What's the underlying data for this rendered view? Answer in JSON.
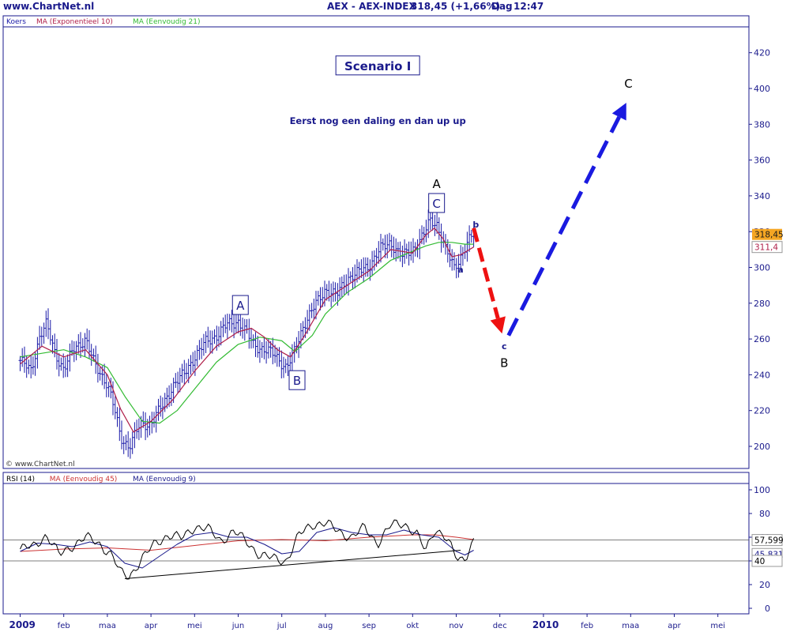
{
  "header": {
    "site": "www.ChartNet.nl",
    "symbol": "AEX - AEX-INDEX",
    "quote": "318,45 (+1,66%)",
    "period": "Dag",
    "time": "12:47"
  },
  "colors": {
    "price_bars": "#1a1aa8",
    "ma_exp10": "#b0204a",
    "ma_simple21": "#33bb33",
    "rsi_line": "#000000",
    "rsi_ma45": "#cc3333",
    "rsi_ma9": "#1a1a8c",
    "arrow_red": "#ee1111",
    "arrow_blue": "#1a1ae0",
    "axis_text": "#1a1a8c"
  },
  "chart_data": [
    {
      "type": "line",
      "subtype": "ohlc-bars",
      "legend": [
        "Koers",
        "MA (Exponentieel 10)",
        "MA (Eenvoudig 21)"
      ],
      "x_ticks": [
        "2009",
        "feb",
        "maa",
        "apr",
        "mei",
        "jun",
        "jul",
        "aug",
        "sep",
        "okt",
        "nov",
        "dec",
        "2010",
        "feb",
        "maa",
        "apr",
        "mei"
      ],
      "y_ticks": [
        200,
        220,
        240,
        260,
        280,
        300,
        320,
        340,
        360,
        380,
        400,
        420
      ],
      "ylim": [
        190,
        432
      ],
      "last_price_label": "318,45",
      "ma_label": "311,4",
      "series": [
        {
          "name": "Koers",
          "x": [
            0,
            0.25,
            0.45,
            0.6,
            0.8,
            1.0,
            1.25,
            1.5,
            1.7,
            2.0,
            2.15,
            2.3,
            2.5,
            2.75,
            3.0,
            3.25,
            3.5,
            3.75,
            4.0,
            4.25,
            4.5,
            4.75,
            5.0,
            5.2,
            5.35,
            5.6,
            5.85,
            6.1,
            6.25,
            6.5,
            6.75,
            7.0,
            7.25,
            7.5,
            7.75,
            8.0,
            8.25,
            8.5,
            8.75,
            9.0,
            9.25,
            9.4,
            9.55,
            9.75,
            9.95,
            10.1,
            10.25,
            10.4
          ],
          "y": [
            248,
            242,
            262,
            268,
            252,
            243,
            255,
            260,
            246,
            235,
            222,
            205,
            200,
            212,
            213,
            222,
            234,
            240,
            250,
            258,
            262,
            268,
            270,
            263,
            257,
            254,
            251,
            244,
            250,
            268,
            278,
            288,
            284,
            294,
            297,
            301,
            310,
            314,
            306,
            310,
            318,
            326,
            325,
            310,
            300,
            306,
            313,
            318.45
          ]
        },
        {
          "name": "MA (Exponentieel 10)",
          "x": [
            0,
            0.5,
            1.0,
            1.5,
            2.0,
            2.3,
            2.6,
            3.0,
            3.5,
            4.0,
            4.5,
            5.0,
            5.3,
            5.6,
            5.9,
            6.2,
            6.5,
            7.0,
            7.5,
            8.0,
            8.5,
            9.0,
            9.3,
            9.5,
            9.7,
            9.9,
            10.1,
            10.4
          ],
          "y": [
            246,
            256,
            250,
            254,
            240,
            221,
            208,
            214,
            226,
            242,
            256,
            264,
            266,
            261,
            254,
            250,
            261,
            282,
            290,
            298,
            310,
            308,
            318,
            322,
            316,
            306,
            307,
            311.4
          ]
        },
        {
          "name": "MA (Eenvoudig 21)",
          "x": [
            0,
            0.5,
            1.0,
            1.5,
            2.0,
            2.4,
            2.8,
            3.2,
            3.6,
            4.0,
            4.5,
            5.0,
            5.5,
            6.0,
            6.3,
            6.7,
            7.0,
            7.5,
            8.0,
            8.5,
            9.0,
            9.3,
            9.6,
            9.9,
            10.2,
            10.4
          ],
          "y": [
            250,
            252,
            254,
            250,
            244,
            228,
            214,
            213,
            220,
            232,
            247,
            257,
            261,
            259,
            253,
            262,
            274,
            286,
            294,
            304,
            309,
            312,
            314,
            314,
            313,
            313
          ]
        }
      ],
      "annotations": [
        {
          "text": "Scenario I",
          "x": 8.2,
          "y": 412,
          "boxed": true,
          "style": "title"
        },
        {
          "text": "Eerst nog een daling en dan up up",
          "x": 8.2,
          "y": 382,
          "style": "note"
        },
        {
          "text": "A",
          "x": 5.05,
          "y": 279,
          "boxed": true,
          "style": "wave-boxed"
        },
        {
          "text": "B",
          "x": 6.35,
          "y": 237,
          "boxed": true,
          "style": "wave-boxed"
        },
        {
          "text": "C",
          "x": 9.55,
          "y": 336,
          "boxed": true,
          "style": "wave-boxed"
        },
        {
          "text": "A",
          "x": 9.55,
          "y": 347,
          "style": "wave-big"
        },
        {
          "text": "b",
          "x": 10.45,
          "y": 324,
          "style": "wave-small"
        },
        {
          "text": "a",
          "x": 10.1,
          "y": 299,
          "style": "wave-small"
        },
        {
          "text": "c",
          "x": 11.1,
          "y": 256,
          "style": "wave-small"
        },
        {
          "text": "B",
          "x": 11.1,
          "y": 247,
          "style": "wave-big"
        },
        {
          "text": "C",
          "x": 13.95,
          "y": 403,
          "style": "wave-big"
        }
      ],
      "arrows": [
        {
          "color": "red",
          "from": [
            10.4,
            322
          ],
          "to": [
            11.05,
            263
          ]
        },
        {
          "color": "blue",
          "from": [
            11.2,
            262
          ],
          "to": [
            13.9,
            392
          ]
        }
      ],
      "watermark": "© www.ChartNet.nl"
    },
    {
      "type": "line",
      "legend": [
        "RSI (14)",
        "MA (Eenvoudig 45)",
        "MA (Eenvoudig 9)"
      ],
      "y_ticks": [
        0,
        20,
        40,
        60,
        80,
        100
      ],
      "ylim": [
        -5,
        104
      ],
      "reference_lines": [
        40,
        57.599
      ],
      "rsi_label": "57,599",
      "ma_label": "45,831",
      "level_label": "40",
      "series": [
        {
          "name": "RSI (14)",
          "x": [
            0,
            0.3,
            0.6,
            0.9,
            1.2,
            1.5,
            1.8,
            2.1,
            2.3,
            2.5,
            2.8,
            3.1,
            3.4,
            3.7,
            4.0,
            4.3,
            4.6,
            4.9,
            5.2,
            5.5,
            5.8,
            6.1,
            6.4,
            6.7,
            7.0,
            7.3,
            7.6,
            7.9,
            8.2,
            8.5,
            8.8,
            9.1,
            9.3,
            9.5,
            9.7,
            9.9,
            10.05,
            10.2,
            10.4
          ],
          "y": [
            50,
            52,
            62,
            45,
            53,
            60,
            55,
            45,
            30,
            27,
            42,
            55,
            62,
            59,
            69,
            67,
            57,
            65,
            56,
            45,
            42,
            40,
            62,
            71,
            72,
            65,
            60,
            68,
            55,
            70,
            72,
            62,
            48,
            67,
            63,
            50,
            40,
            43,
            57.599
          ]
        },
        {
          "name": "MA (Eenvoudig 9)",
          "x": [
            0,
            0.4,
            0.8,
            1.2,
            1.6,
            2.0,
            2.4,
            2.8,
            3.2,
            3.6,
            4.0,
            4.4,
            4.8,
            5.2,
            5.6,
            6.0,
            6.4,
            6.8,
            7.2,
            7.6,
            8.0,
            8.4,
            8.8,
            9.2,
            9.6,
            10.0,
            10.2,
            10.4
          ],
          "y": [
            48,
            55,
            54,
            52,
            56,
            52,
            38,
            34,
            44,
            54,
            62,
            64,
            60,
            60,
            54,
            46,
            48,
            64,
            68,
            64,
            62,
            62,
            66,
            62,
            60,
            48,
            45,
            49
          ]
        },
        {
          "name": "MA (Eenvoudig 45)",
          "x": [
            0,
            1,
            2,
            3,
            4,
            5,
            6,
            7,
            8,
            9,
            9.5,
            10,
            10.4
          ],
          "y": [
            48,
            50,
            51,
            49,
            53,
            57,
            58,
            57,
            60,
            62,
            62,
            60,
            58
          ]
        }
      ],
      "trendline": {
        "from": [
          2.4,
          25
        ],
        "to": [
          10.1,
          49
        ]
      }
    }
  ]
}
